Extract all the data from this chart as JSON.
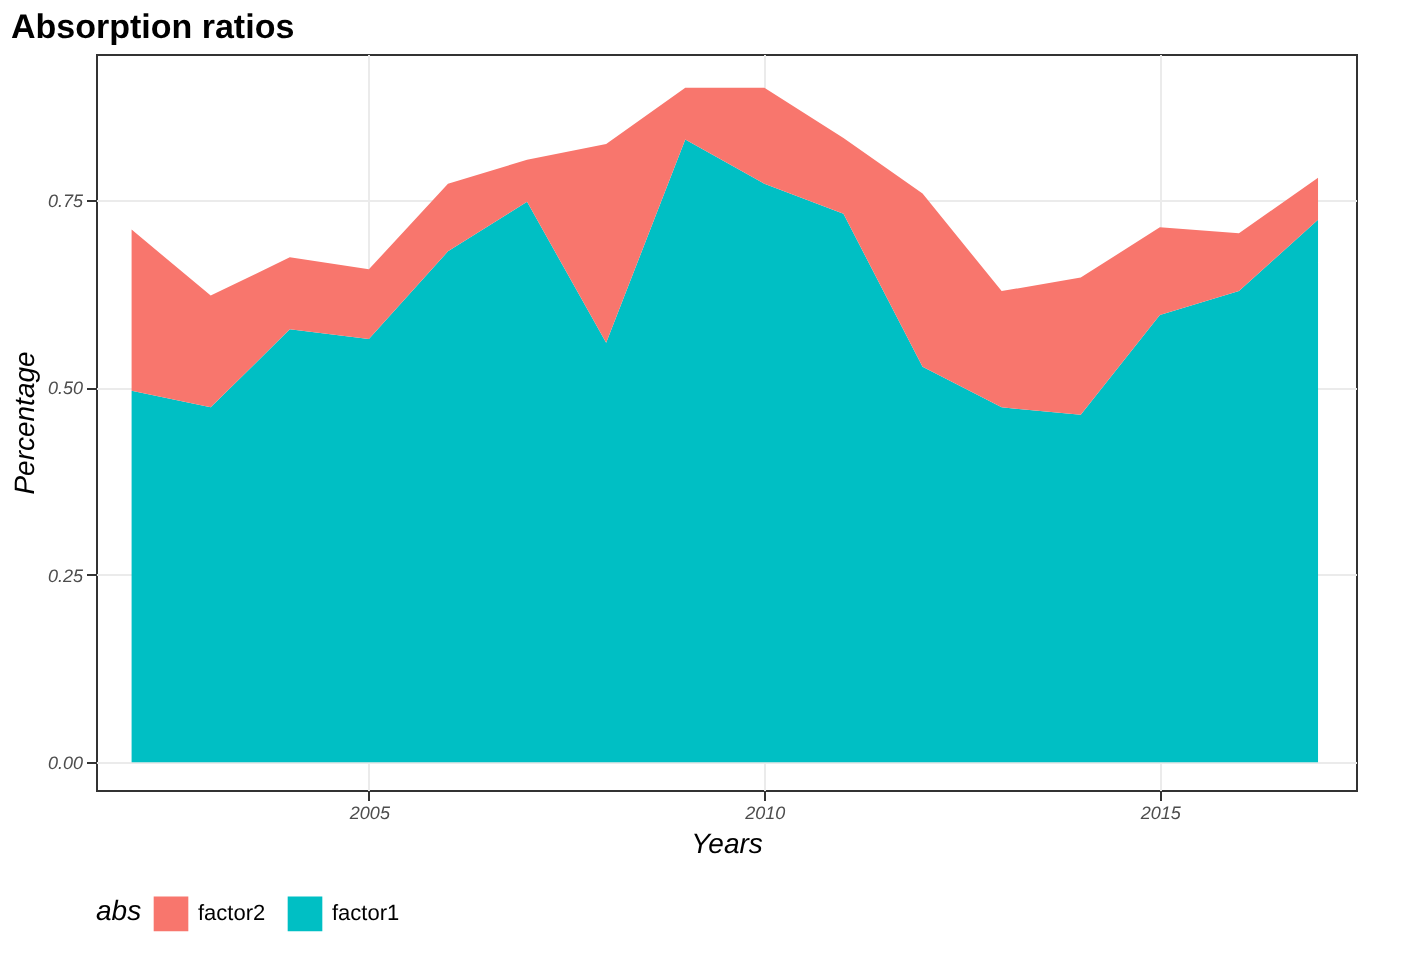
{
  "chart_data": {
    "type": "area",
    "title": "Absorption ratios",
    "xlabel": "Years",
    "ylabel": "Percentage",
    "legend_title": "abs",
    "x": [
      2002,
      2003,
      2004,
      2005,
      2006,
      2007,
      2008,
      2009,
      2010,
      2011,
      2012,
      2013,
      2014,
      2015,
      2016,
      2017
    ],
    "stacked": true,
    "series": [
      {
        "name": "factor1",
        "color": "#00bfc4",
        "values": [
          0.495,
          0.473,
          0.577,
          0.564,
          0.681,
          0.747,
          0.559,
          0.83,
          0.771,
          0.731,
          0.527,
          0.473,
          0.463,
          0.596,
          0.628,
          0.723
        ]
      },
      {
        "name": "factor2",
        "color": "#f8766d",
        "values": [
          0.215,
          0.149,
          0.096,
          0.093,
          0.09,
          0.056,
          0.265,
          0.069,
          0.128,
          0.101,
          0.231,
          0.155,
          0.183,
          0.117,
          0.077,
          0.056
        ]
      }
    ],
    "xlim": [
      2001.55,
      2017.48
    ],
    "xticks": [
      2005,
      2010,
      2015
    ],
    "ylim": [
      -0.037,
      0.944
    ],
    "yticks": [
      {
        "value": 0,
        "label": "0.00"
      },
      {
        "value": 0.25,
        "label": "0.25"
      },
      {
        "value": 0.5,
        "label": "0.50"
      },
      {
        "value": 0.75,
        "label": "0.75"
      }
    ],
    "grid": true,
    "legend": "bottom"
  }
}
